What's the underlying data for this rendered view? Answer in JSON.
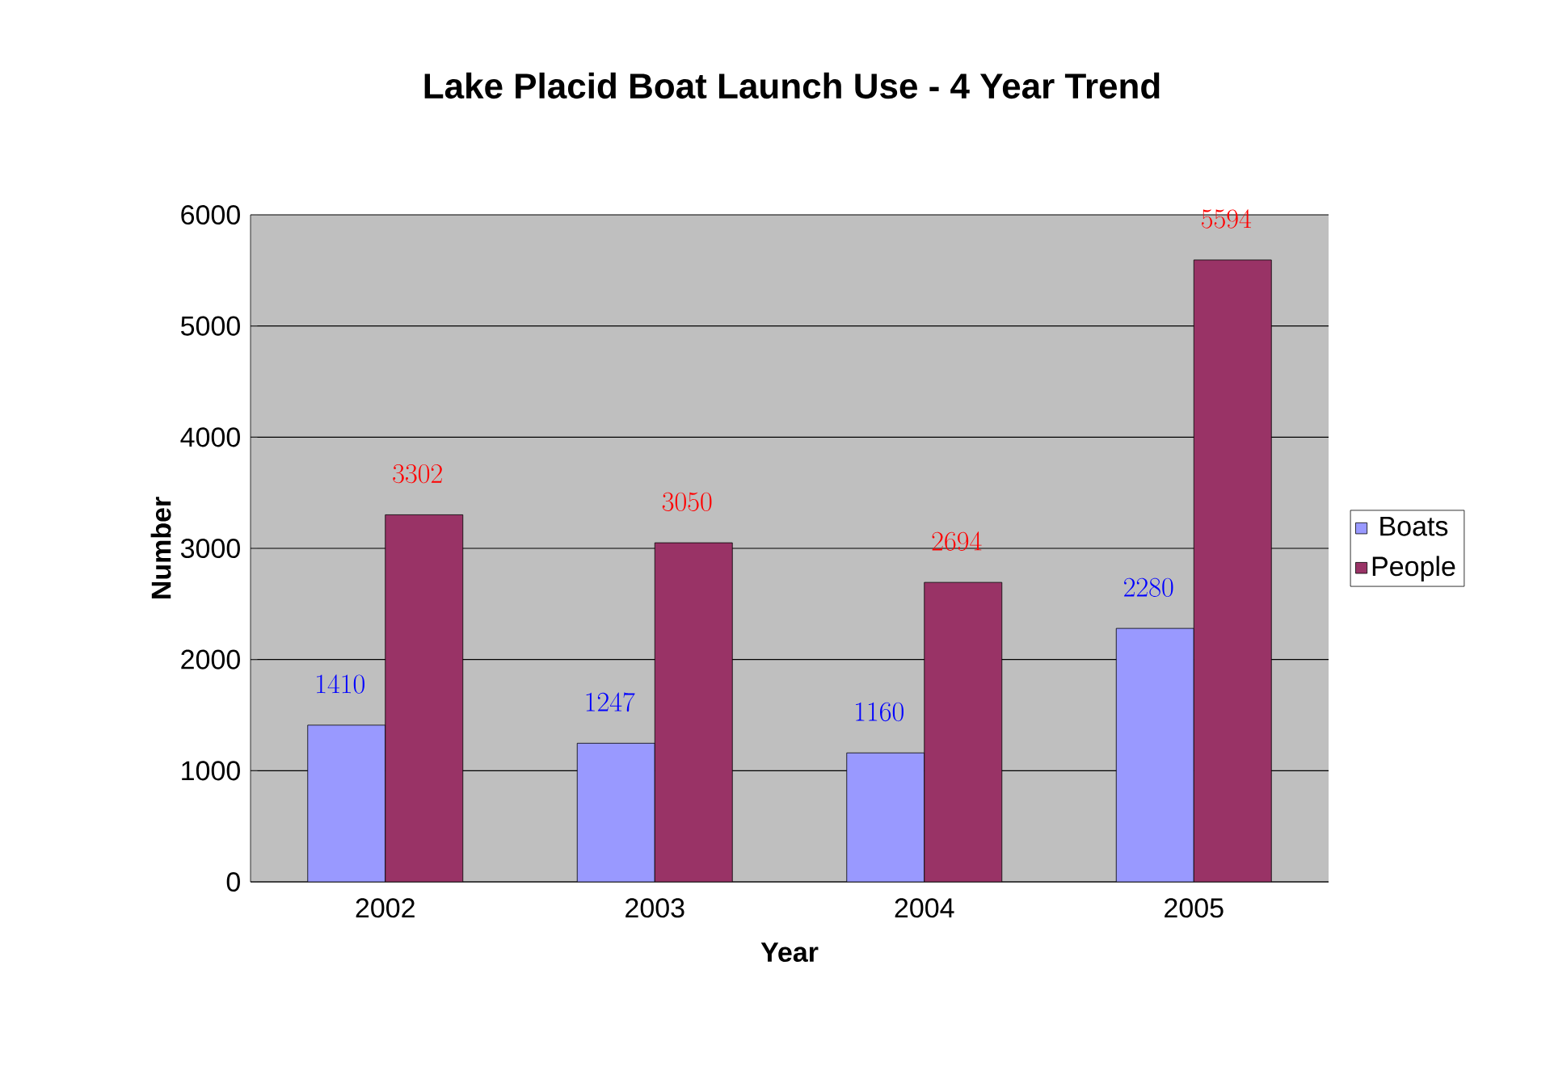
{
  "chart_data": {
    "type": "bar",
    "title": "Lake Placid Boat Launch Use - 4 Year Trend",
    "xlabel": "Year",
    "ylabel": "Number",
    "categories": [
      "2002",
      "2003",
      "2004",
      "2005"
    ],
    "series": [
      {
        "name": "Boats",
        "color": "#9999ff",
        "values": [
          1410,
          1247,
          1160,
          2280
        ]
      },
      {
        "name": "People",
        "color": "#993366",
        "values": [
          3302,
          3050,
          2694,
          5594
        ]
      }
    ],
    "ylim": [
      0,
      6000
    ],
    "yticks": [
      0,
      1000,
      2000,
      3000,
      4000,
      5000,
      6000
    ],
    "grid": "y",
    "legend": "right",
    "data_labels": true
  }
}
